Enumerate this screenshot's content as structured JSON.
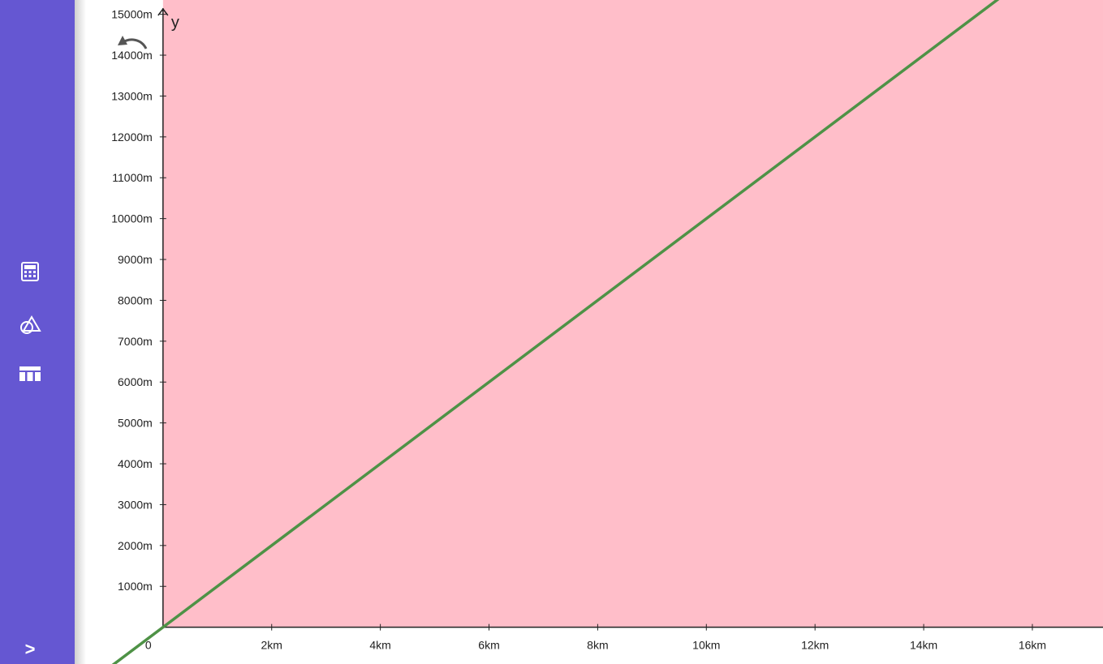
{
  "sidebar": {
    "items": [
      {
        "name": "calculator",
        "icon": "calculator-icon"
      },
      {
        "name": "geometry",
        "icon": "geometry-icon"
      },
      {
        "name": "table",
        "icon": "table-icon"
      }
    ],
    "expand_label": ">"
  },
  "colors": {
    "sidebar": "#6557d2",
    "plot_background": "#ffbec9",
    "line": "#4e9246"
  },
  "chart_data": {
    "type": "line",
    "x_axis": {
      "name": "",
      "unit": "km",
      "range": [
        -3,
        17.3
      ],
      "ticks": [
        2,
        4,
        6,
        8,
        10,
        12,
        14,
        16
      ],
      "tick_labels": [
        "2km",
        "4km",
        "6km",
        "8km",
        "10km",
        "12km",
        "14km",
        "16km"
      ]
    },
    "y_axis": {
      "name": "y",
      "unit": "m",
      "range": [
        -900,
        15350
      ],
      "ticks": [
        1000,
        2000,
        3000,
        4000,
        5000,
        6000,
        7000,
        8000,
        9000,
        10000,
        11000,
        12000,
        13000,
        14000,
        15000
      ],
      "tick_labels": [
        "1000m",
        "2000m",
        "3000m",
        "4000m",
        "5000m",
        "6000m",
        "7000m",
        "8000m",
        "9000m",
        "10000m",
        "11000m",
        "12000m",
        "13000m",
        "14000m",
        "15000m"
      ]
    },
    "origin_label": "0",
    "series": [
      {
        "points": [
          [
            -1,
            -1000
          ],
          [
            17.3,
            17300
          ]
        ]
      }
    ],
    "shaded_region": "y <= 1000*x is not shaded; full plot area shaded pink",
    "grid": false
  }
}
